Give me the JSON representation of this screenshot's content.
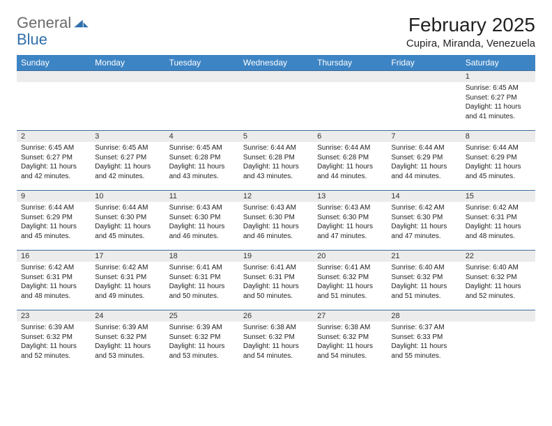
{
  "brand": {
    "part1": "General",
    "part2": "Blue"
  },
  "title": "February 2025",
  "location": "Cupira, Miranda, Venezuela",
  "colors": {
    "header_bg": "#3d84c4",
    "header_text": "#ffffff",
    "row_divider": "#3d6a9a",
    "daynum_bg": "#ececec",
    "logo_gray": "#6b6b6b",
    "logo_blue": "#2f6fab",
    "page_bg": "#ffffff",
    "body_text": "#222222"
  },
  "weekdays": [
    "Sunday",
    "Monday",
    "Tuesday",
    "Wednesday",
    "Thursday",
    "Friday",
    "Saturday"
  ],
  "weeks": [
    [
      {
        "n": "",
        "lines": []
      },
      {
        "n": "",
        "lines": []
      },
      {
        "n": "",
        "lines": []
      },
      {
        "n": "",
        "lines": []
      },
      {
        "n": "",
        "lines": []
      },
      {
        "n": "",
        "lines": []
      },
      {
        "n": "1",
        "lines": [
          "Sunrise: 6:45 AM",
          "Sunset: 6:27 PM",
          "Daylight: 11 hours and 41 minutes."
        ]
      }
    ],
    [
      {
        "n": "2",
        "lines": [
          "Sunrise: 6:45 AM",
          "Sunset: 6:27 PM",
          "Daylight: 11 hours and 42 minutes."
        ]
      },
      {
        "n": "3",
        "lines": [
          "Sunrise: 6:45 AM",
          "Sunset: 6:27 PM",
          "Daylight: 11 hours and 42 minutes."
        ]
      },
      {
        "n": "4",
        "lines": [
          "Sunrise: 6:45 AM",
          "Sunset: 6:28 PM",
          "Daylight: 11 hours and 43 minutes."
        ]
      },
      {
        "n": "5",
        "lines": [
          "Sunrise: 6:44 AM",
          "Sunset: 6:28 PM",
          "Daylight: 11 hours and 43 minutes."
        ]
      },
      {
        "n": "6",
        "lines": [
          "Sunrise: 6:44 AM",
          "Sunset: 6:28 PM",
          "Daylight: 11 hours and 44 minutes."
        ]
      },
      {
        "n": "7",
        "lines": [
          "Sunrise: 6:44 AM",
          "Sunset: 6:29 PM",
          "Daylight: 11 hours and 44 minutes."
        ]
      },
      {
        "n": "8",
        "lines": [
          "Sunrise: 6:44 AM",
          "Sunset: 6:29 PM",
          "Daylight: 11 hours and 45 minutes."
        ]
      }
    ],
    [
      {
        "n": "9",
        "lines": [
          "Sunrise: 6:44 AM",
          "Sunset: 6:29 PM",
          "Daylight: 11 hours and 45 minutes."
        ]
      },
      {
        "n": "10",
        "lines": [
          "Sunrise: 6:44 AM",
          "Sunset: 6:30 PM",
          "Daylight: 11 hours and 45 minutes."
        ]
      },
      {
        "n": "11",
        "lines": [
          "Sunrise: 6:43 AM",
          "Sunset: 6:30 PM",
          "Daylight: 11 hours and 46 minutes."
        ]
      },
      {
        "n": "12",
        "lines": [
          "Sunrise: 6:43 AM",
          "Sunset: 6:30 PM",
          "Daylight: 11 hours and 46 minutes."
        ]
      },
      {
        "n": "13",
        "lines": [
          "Sunrise: 6:43 AM",
          "Sunset: 6:30 PM",
          "Daylight: 11 hours and 47 minutes."
        ]
      },
      {
        "n": "14",
        "lines": [
          "Sunrise: 6:42 AM",
          "Sunset: 6:30 PM",
          "Daylight: 11 hours and 47 minutes."
        ]
      },
      {
        "n": "15",
        "lines": [
          "Sunrise: 6:42 AM",
          "Sunset: 6:31 PM",
          "Daylight: 11 hours and 48 minutes."
        ]
      }
    ],
    [
      {
        "n": "16",
        "lines": [
          "Sunrise: 6:42 AM",
          "Sunset: 6:31 PM",
          "Daylight: 11 hours and 48 minutes."
        ]
      },
      {
        "n": "17",
        "lines": [
          "Sunrise: 6:42 AM",
          "Sunset: 6:31 PM",
          "Daylight: 11 hours and 49 minutes."
        ]
      },
      {
        "n": "18",
        "lines": [
          "Sunrise: 6:41 AM",
          "Sunset: 6:31 PM",
          "Daylight: 11 hours and 50 minutes."
        ]
      },
      {
        "n": "19",
        "lines": [
          "Sunrise: 6:41 AM",
          "Sunset: 6:31 PM",
          "Daylight: 11 hours and 50 minutes."
        ]
      },
      {
        "n": "20",
        "lines": [
          "Sunrise: 6:41 AM",
          "Sunset: 6:32 PM",
          "Daylight: 11 hours and 51 minutes."
        ]
      },
      {
        "n": "21",
        "lines": [
          "Sunrise: 6:40 AM",
          "Sunset: 6:32 PM",
          "Daylight: 11 hours and 51 minutes."
        ]
      },
      {
        "n": "22",
        "lines": [
          "Sunrise: 6:40 AM",
          "Sunset: 6:32 PM",
          "Daylight: 11 hours and 52 minutes."
        ]
      }
    ],
    [
      {
        "n": "23",
        "lines": [
          "Sunrise: 6:39 AM",
          "Sunset: 6:32 PM",
          "Daylight: 11 hours and 52 minutes."
        ]
      },
      {
        "n": "24",
        "lines": [
          "Sunrise: 6:39 AM",
          "Sunset: 6:32 PM",
          "Daylight: 11 hours and 53 minutes."
        ]
      },
      {
        "n": "25",
        "lines": [
          "Sunrise: 6:39 AM",
          "Sunset: 6:32 PM",
          "Daylight: 11 hours and 53 minutes."
        ]
      },
      {
        "n": "26",
        "lines": [
          "Sunrise: 6:38 AM",
          "Sunset: 6:32 PM",
          "Daylight: 11 hours and 54 minutes."
        ]
      },
      {
        "n": "27",
        "lines": [
          "Sunrise: 6:38 AM",
          "Sunset: 6:32 PM",
          "Daylight: 11 hours and 54 minutes."
        ]
      },
      {
        "n": "28",
        "lines": [
          "Sunrise: 6:37 AM",
          "Sunset: 6:33 PM",
          "Daylight: 11 hours and 55 minutes."
        ]
      },
      {
        "n": "",
        "lines": []
      }
    ]
  ]
}
